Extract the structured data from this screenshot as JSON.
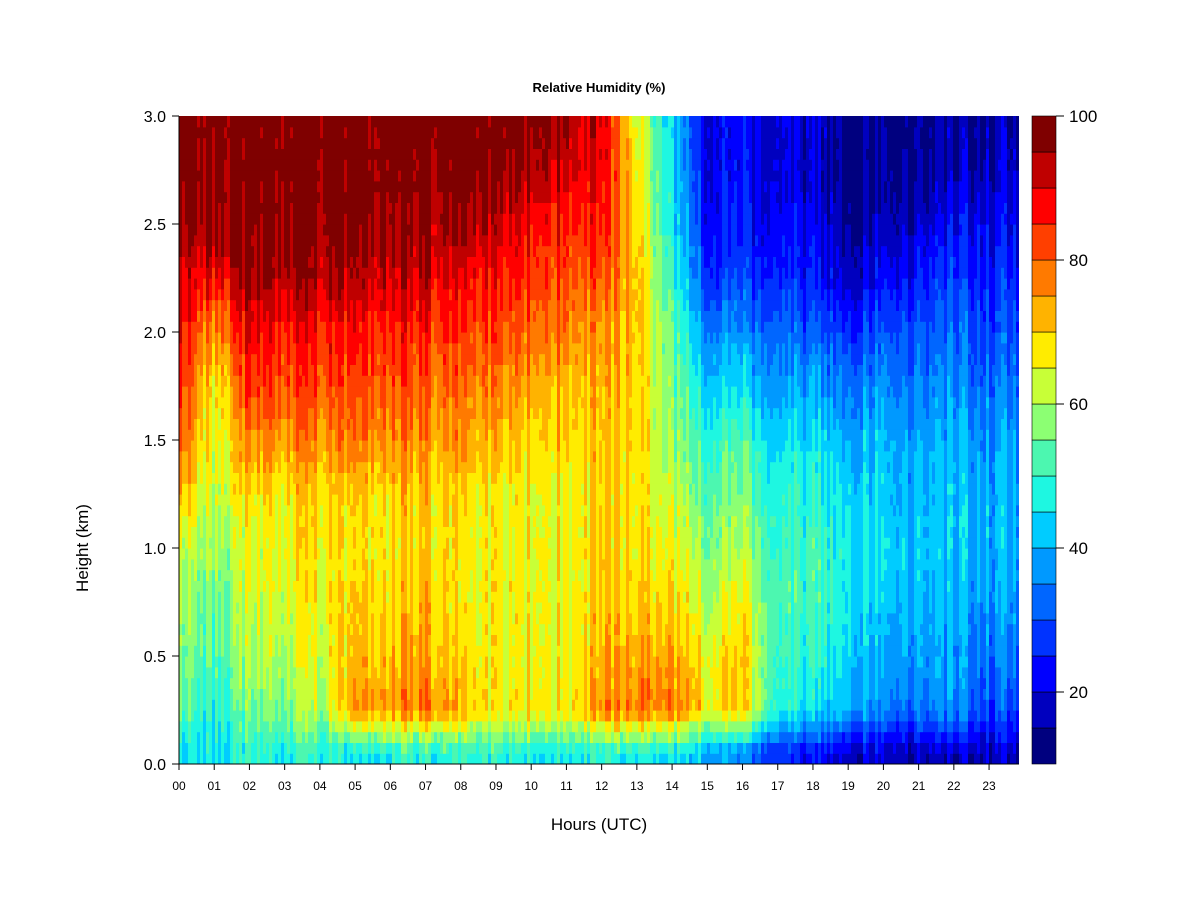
{
  "chart_data": {
    "type": "heatmap",
    "title": "Relative Humidity (%)",
    "xlabel": "Hours (UTC)",
    "ylabel": "Height (km)",
    "x_ticks": [
      "00",
      "01",
      "02",
      "03",
      "04",
      "05",
      "06",
      "07",
      "08",
      "09",
      "10",
      "11",
      "12",
      "13",
      "14",
      "15",
      "16",
      "17",
      "18",
      "19",
      "20",
      "21",
      "22",
      "23"
    ],
    "y_ticks": [
      "0.0",
      "0.5",
      "1.0",
      "1.5",
      "2.0",
      "2.5",
      "3.0"
    ],
    "xlim": [
      0,
      23.85
    ],
    "ylim": [
      0,
      3.0
    ],
    "colorbar": {
      "min": 10,
      "max": 100,
      "step": 5,
      "tick_labels": [
        "20",
        "40",
        "60",
        "80",
        "100"
      ],
      "colors": [
        "#00007f",
        "#0000bf",
        "#0000ff",
        "#0033ff",
        "#0066ff",
        "#0099ff",
        "#00ccff",
        "#1ef7e1",
        "#4cf7b0",
        "#8cff73",
        "#c8ff37",
        "#ffec00",
        "#ffb300",
        "#ff7a00",
        "#ff3f00",
        "#ff0000",
        "#bf0000",
        "#7f0000"
      ]
    },
    "grid": false,
    "hours": [
      0,
      1,
      2,
      3,
      4,
      5,
      6,
      7,
      8,
      9,
      10,
      11,
      12,
      13,
      14,
      15,
      16,
      17,
      18,
      19,
      20,
      21,
      22,
      23
    ],
    "heights_km": [
      0.05,
      0.25,
      0.5,
      0.75,
      1.0,
      1.25,
      1.5,
      1.75,
      2.0,
      2.25,
      2.5,
      2.75,
      3.0
    ],
    "values": [
      [
        45,
        55,
        58,
        60,
        64,
        72,
        82,
        86,
        90,
        92,
        97,
        98,
        99
      ],
      [
        45,
        48,
        52,
        55,
        58,
        62,
        64,
        66,
        75,
        88,
        97,
        98,
        99
      ],
      [
        48,
        55,
        60,
        62,
        64,
        68,
        76,
        83,
        88,
        95,
        98,
        99,
        99
      ],
      [
        48,
        58,
        62,
        64,
        66,
        68,
        76,
        82,
        87,
        95,
        98,
        99,
        99
      ],
      [
        48,
        60,
        64,
        66,
        68,
        70,
        76,
        82,
        86,
        94,
        98,
        99,
        99
      ],
      [
        45,
        75,
        72,
        70,
        68,
        70,
        78,
        82,
        87,
        94,
        97,
        99,
        99
      ],
      [
        48,
        76,
        72,
        70,
        68,
        70,
        77,
        82,
        86,
        93,
        97,
        99,
        99
      ],
      [
        48,
        78,
        74,
        72,
        70,
        70,
        76,
        80,
        85,
        92,
        96,
        99,
        99
      ],
      [
        48,
        72,
        68,
        66,
        66,
        68,
        74,
        78,
        82,
        88,
        95,
        98,
        99
      ],
      [
        48,
        66,
        66,
        66,
        66,
        66,
        72,
        76,
        82,
        86,
        92,
        97,
        99
      ],
      [
        47,
        68,
        66,
        66,
        66,
        66,
        70,
        74,
        80,
        84,
        88,
        95,
        98
      ],
      [
        47,
        68,
        66,
        66,
        66,
        66,
        70,
        72,
        78,
        82,
        86,
        92,
        96
      ],
      [
        47,
        76,
        72,
        70,
        70,
        70,
        70,
        72,
        74,
        80,
        86,
        88,
        90
      ],
      [
        47,
        78,
        74,
        70,
        68,
        68,
        70,
        70,
        72,
        72,
        70,
        68,
        66
      ],
      [
        45,
        78,
        74,
        70,
        66,
        62,
        58,
        56,
        54,
        50,
        46,
        44,
        42
      ],
      [
        40,
        68,
        66,
        62,
        58,
        54,
        50,
        44,
        36,
        28,
        24,
        22,
        22
      ],
      [
        35,
        70,
        70,
        66,
        60,
        56,
        52,
        44,
        36,
        28,
        24,
        22,
        22
      ],
      [
        26,
        48,
        50,
        52,
        50,
        48,
        44,
        38,
        32,
        26,
        22,
        20,
        20
      ],
      [
        22,
        44,
        48,
        50,
        50,
        48,
        44,
        38,
        30,
        24,
        20,
        18,
        18
      ],
      [
        20,
        42,
        46,
        48,
        48,
        46,
        42,
        36,
        28,
        20,
        16,
        14,
        14
      ],
      [
        18,
        34,
        38,
        42,
        44,
        42,
        40,
        36,
        30,
        22,
        16,
        14,
        14
      ],
      [
        17,
        34,
        38,
        40,
        42,
        40,
        38,
        34,
        30,
        24,
        18,
        14,
        14
      ],
      [
        17,
        36,
        38,
        40,
        42,
        42,
        40,
        36,
        32,
        28,
        22,
        16,
        15
      ],
      [
        18,
        30,
        34,
        38,
        40,
        40,
        38,
        34,
        30,
        26,
        22,
        18,
        16
      ]
    ]
  }
}
